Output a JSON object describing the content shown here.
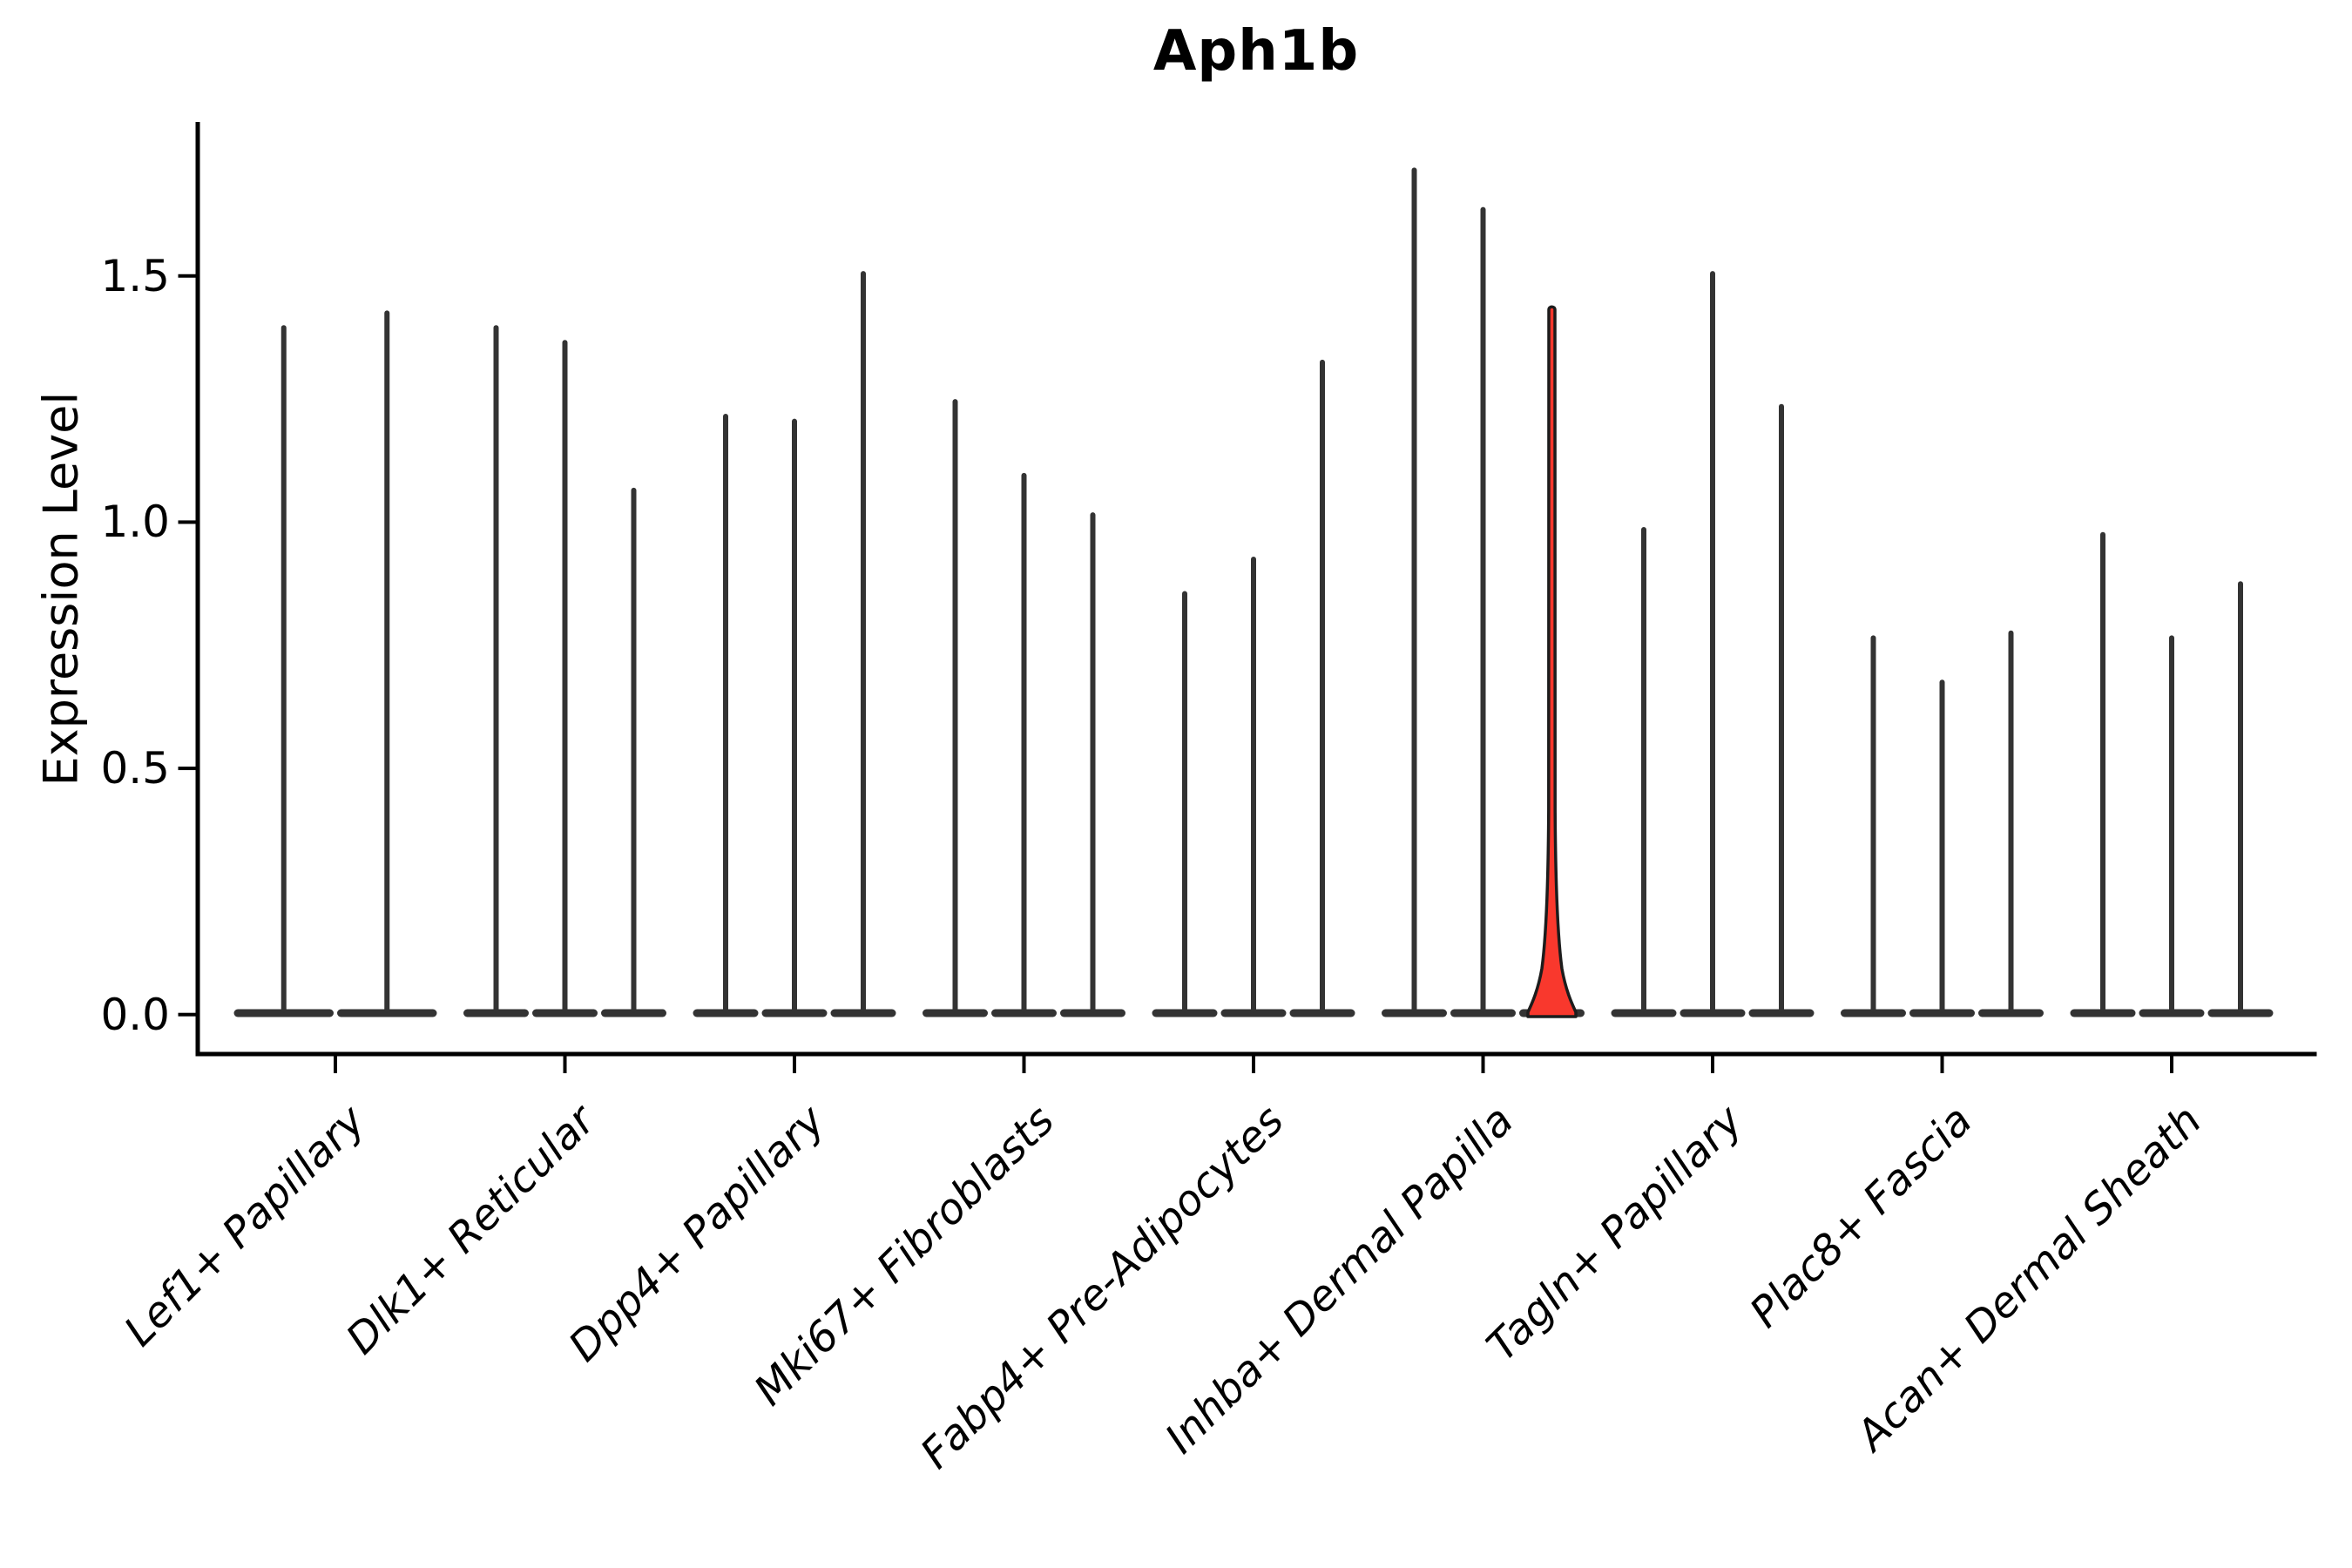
{
  "chart_data": {
    "type": "violin",
    "title": "Aph1b",
    "ylabel": "Expression Level",
    "xlabel": "",
    "yticks": [
      "0.0",
      "0.5",
      "1.0",
      "1.5"
    ],
    "ytick_values": [
      0.0,
      0.5,
      1.0,
      1.5
    ],
    "ylim": [
      -0.08,
      1.81
    ],
    "grid": false,
    "legend": "none",
    "categories": [
      "Lef1+ Papillary",
      "Dlk1+ Reticular",
      "Dpp4+ Papillary",
      "Mki67+ Fibroblasts",
      "Fabp4+ Pre-Adipocytes",
      "Inhba+ Dermal Papilla",
      "Tagln+ Papillary",
      "Plac8+ Fascia",
      "Acan+ Dermal Sheath"
    ],
    "groups": [
      {
        "label": "Lef1+ Papillary",
        "violin_max_values": [
          1.4,
          1.43
        ]
      },
      {
        "label": "Dlk1+ Reticular",
        "violin_max_values": [
          1.4,
          1.37,
          1.07
        ]
      },
      {
        "label": "Dpp4+ Papillary",
        "violin_max_values": [
          1.22,
          1.21,
          1.51
        ]
      },
      {
        "label": "Mki67+ Fibroblasts",
        "violin_max_values": [
          1.25,
          1.1,
          1.02
        ]
      },
      {
        "label": "Fabp4+ Pre-Adipocytes",
        "violin_max_values": [
          0.86,
          0.93,
          1.33
        ]
      },
      {
        "label": "Inhba+ Dermal Papilla",
        "violin_max_values": [
          1.72,
          1.64,
          1.44
        ]
      },
      {
        "label": "Tagln+ Papillary",
        "violin_max_values": [
          0.99,
          1.51,
          1.24
        ]
      },
      {
        "label": "Plac8+ Fascia",
        "violin_max_values": [
          0.77,
          0.68,
          0.78
        ]
      },
      {
        "label": "Acan+ Dermal Sheath",
        "violin_max_values": [
          0.98,
          0.77,
          0.88
        ]
      }
    ],
    "highlighted_violin": {
      "group_label": "Inhba+ Dermal Papilla",
      "group_index": 5,
      "violin_index": 2,
      "max_value": 1.44,
      "fill_color": "#f9382d"
    },
    "violin_color": "#333333",
    "spine_color": "#000000",
    "background_color": "#ffffff"
  }
}
